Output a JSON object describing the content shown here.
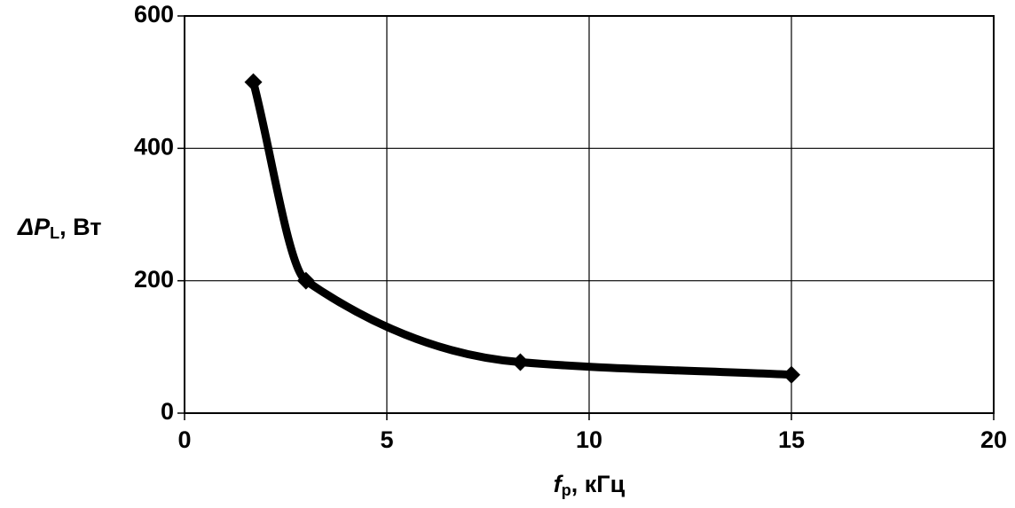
{
  "chart_data": {
    "type": "line",
    "ylabel": {
      "symbol": "ΔP",
      "subscript": "L",
      "unit": ", Вт"
    },
    "xlabel": {
      "symbol": "f",
      "subscript": "p",
      "unit": ", кГц"
    },
    "x": [
      1.7,
      3,
      8.3,
      15
    ],
    "series": [
      {
        "color": "#000000",
        "values": [
          500,
          200,
          77,
          58
        ]
      }
    ],
    "xlim": [
      0,
      20
    ],
    "xticks": [
      0,
      5,
      10,
      15,
      20
    ],
    "ylim": [
      0,
      600
    ],
    "yticks": [
      0,
      200,
      400,
      600
    ],
    "grid": true
  }
}
